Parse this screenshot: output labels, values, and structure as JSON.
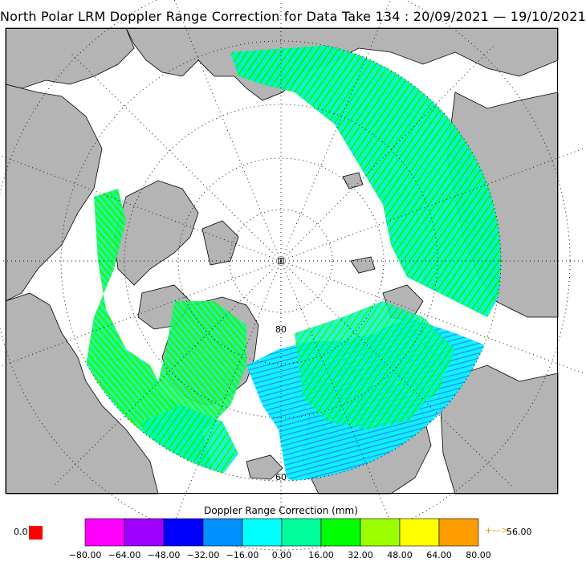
{
  "title": "North Polar LRM Doppler Range Correction for Data Take 134 : 20/09/2021 — 19/10/2021",
  "map": {
    "projection": "north-polar-stereographic",
    "latitude_labels": [
      "80",
      "60"
    ],
    "land_color": "#b4b4b4",
    "ocean_color": "#ffffff",
    "frame_color": "#000000",
    "graticule": "dotted"
  },
  "colorbar": {
    "title": "Doppler Range Correction (mm)",
    "ticks": [
      "−80.00",
      "−64.00",
      "−48.00",
      "−32.00",
      "−16.00",
      "0.00",
      "16.00",
      "32.00",
      "48.00",
      "64.00",
      "80.00"
    ],
    "colors": [
      "#ff00ff",
      "#a000ff",
      "#0000ff",
      "#0090ff",
      "#00ffff",
      "#00ff9c",
      "#00ff00",
      "#9cff00",
      "#ffff00",
      "#ff9c00"
    ],
    "land_value": "0.0",
    "land_color": "#ff0000",
    "over_arrow": "+—>",
    "over_value": "56.00"
  }
}
